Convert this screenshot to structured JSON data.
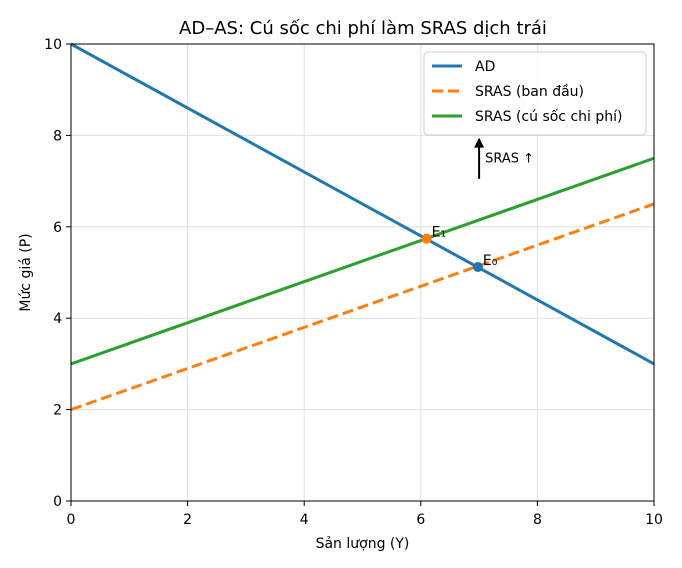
{
  "chart_data": {
    "type": "line",
    "title": "AD–AS: Cú sốc chi phí làm SRAS dịch trái",
    "xlabel": "Sản lượng (Y)",
    "ylabel": "Mức giá (P)",
    "xlim": [
      0,
      10
    ],
    "ylim": [
      0,
      10
    ],
    "xticks": [
      "0",
      "2",
      "4",
      "6",
      "8",
      "10"
    ],
    "yticks": [
      "0",
      "2",
      "4",
      "6",
      "8",
      "10"
    ],
    "grid": true,
    "legend_position": "top-right",
    "series": [
      {
        "name": "AD",
        "color": "#1f77b4",
        "dash": "solid",
        "x": [
          0,
          10
        ],
        "y": [
          10,
          3
        ]
      },
      {
        "name": "SRAS (ban đầu)",
        "color": "#ff7f0e",
        "dash": "dashed",
        "x": [
          0,
          10
        ],
        "y": [
          2,
          6.5
        ]
      },
      {
        "name": "SRAS (cú sốc chi phí)",
        "color": "#2ca02c",
        "dash": "solid",
        "x": [
          0,
          10
        ],
        "y": [
          3,
          7.5
        ]
      }
    ],
    "points": [
      {
        "label": "E₀",
        "x": 6.98,
        "y": 5.12,
        "color": "#1f77b4"
      },
      {
        "label": "E₁",
        "x": 6.1,
        "y": 5.74,
        "color": "#ff7f0e"
      }
    ],
    "arrow_annotation": {
      "text": "SRAS ↑",
      "x": 7.0,
      "y_from": 7.05,
      "y_to": 7.95
    }
  }
}
